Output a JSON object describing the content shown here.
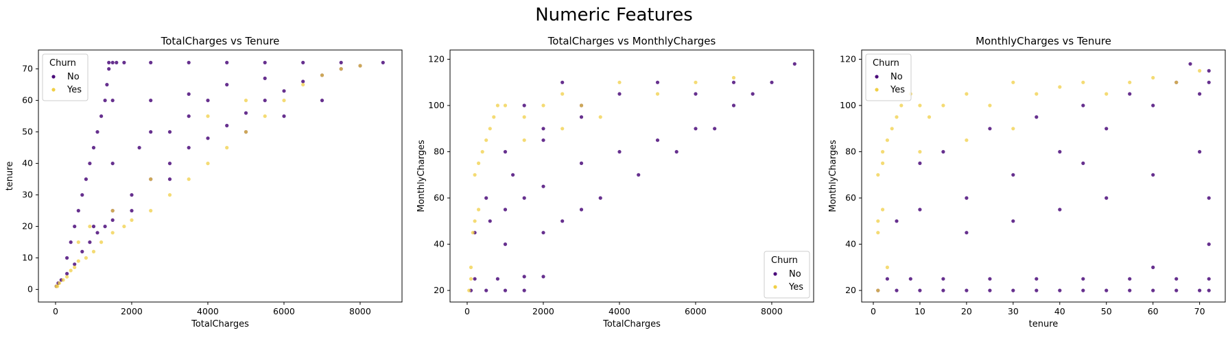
{
  "figure": {
    "suptitle": "Numeric Features"
  },
  "colors": {
    "no": "#4b0c7a",
    "yes": "#f0cf45"
  },
  "chart_data": [
    {
      "type": "scatter",
      "title": "TotalCharges vs Tenure",
      "xlabel": "TotalCharges",
      "ylabel": "tenure",
      "xlim": [
        -450,
        9100
      ],
      "ylim": [
        -4,
        76
      ],
      "xticks": [
        0,
        2000,
        4000,
        6000,
        8000
      ],
      "yticks": [
        0,
        10,
        20,
        30,
        40,
        50,
        60,
        70
      ],
      "grid": false,
      "legend": {
        "title": "Churn",
        "placement": "upper-left",
        "entries": [
          "No",
          "Yes"
        ]
      },
      "series": [
        {
          "name": "No",
          "color": "#4b0c7a",
          "points": [
            [
              20,
              1
            ],
            [
              70,
              2
            ],
            [
              150,
              3
            ],
            [
              300,
              5
            ],
            [
              500,
              8
            ],
            [
              700,
              12
            ],
            [
              900,
              15
            ],
            [
              1100,
              18
            ],
            [
              1300,
              20
            ],
            [
              1500,
              25
            ],
            [
              2000,
              30
            ],
            [
              2500,
              35
            ],
            [
              3000,
              40
            ],
            [
              3500,
              45
            ],
            [
              4000,
              48
            ],
            [
              4500,
              52
            ],
            [
              5000,
              56
            ],
            [
              5500,
              60
            ],
            [
              6000,
              63
            ],
            [
              6500,
              66
            ],
            [
              7000,
              68
            ],
            [
              7500,
              70
            ],
            [
              8000,
              71
            ],
            [
              8600,
              72
            ],
            [
              1400,
              72
            ],
            [
              1500,
              72
            ],
            [
              1600,
              72
            ],
            [
              1800,
              72
            ],
            [
              2500,
              72
            ],
            [
              3500,
              72
            ],
            [
              4500,
              72
            ],
            [
              5500,
              72
            ],
            [
              6500,
              72
            ],
            [
              7500,
              72
            ],
            [
              300,
              10
            ],
            [
              400,
              15
            ],
            [
              500,
              20
            ],
            [
              600,
              25
            ],
            [
              700,
              30
            ],
            [
              800,
              35
            ],
            [
              900,
              40
            ],
            [
              1000,
              45
            ],
            [
              1100,
              50
            ],
            [
              1200,
              55
            ],
            [
              1300,
              60
            ],
            [
              1350,
              65
            ],
            [
              1400,
              70
            ],
            [
              1500,
              60
            ],
            [
              2500,
              60
            ],
            [
              3500,
              62
            ],
            [
              4500,
              65
            ],
            [
              5500,
              67
            ],
            [
              2500,
              50
            ],
            [
              3500,
              55
            ],
            [
              4000,
              60
            ],
            [
              1500,
              40
            ],
            [
              2200,
              45
            ],
            [
              3000,
              50
            ],
            [
              1000,
              20
            ],
            [
              1500,
              22
            ],
            [
              2000,
              25
            ],
            [
              3000,
              35
            ],
            [
              5000,
              50
            ],
            [
              6000,
              55
            ],
            [
              7000,
              60
            ]
          ]
        },
        {
          "name": "Yes",
          "color": "#f0cf45",
          "points": [
            [
              20,
              1
            ],
            [
              50,
              1
            ],
            [
              100,
              2
            ],
            [
              200,
              3
            ],
            [
              300,
              4
            ],
            [
              400,
              6
            ],
            [
              500,
              7
            ],
            [
              600,
              9
            ],
            [
              800,
              10
            ],
            [
              1000,
              12
            ],
            [
              1200,
              15
            ],
            [
              1500,
              18
            ],
            [
              1800,
              20
            ],
            [
              2000,
              22
            ],
            [
              2500,
              25
            ],
            [
              3000,
              30
            ],
            [
              3500,
              35
            ],
            [
              4000,
              40
            ],
            [
              4500,
              45
            ],
            [
              5000,
              50
            ],
            [
              5500,
              55
            ],
            [
              6000,
              60
            ],
            [
              6500,
              65
            ],
            [
              7000,
              68
            ],
            [
              7500,
              70
            ],
            [
              8000,
              71
            ],
            [
              600,
              15
            ],
            [
              900,
              20
            ],
            [
              1500,
              25
            ],
            [
              2500,
              35
            ],
            [
              4000,
              55
            ],
            [
              5000,
              60
            ]
          ]
        }
      ]
    },
    {
      "type": "scatter",
      "title": "TotalCharges vs MonthlyCharges",
      "xlabel": "TotalCharges",
      "ylabel": "MonthlyCharges",
      "xlim": [
        -450,
        9100
      ],
      "ylim": [
        15,
        124
      ],
      "xticks": [
        0,
        2000,
        4000,
        6000,
        8000
      ],
      "yticks": [
        20,
        40,
        60,
        80,
        100,
        120
      ],
      "grid": false,
      "legend": {
        "title": "Churn",
        "placement": "lower-right",
        "entries": [
          "No",
          "Yes"
        ]
      },
      "series": [
        {
          "name": "No",
          "color": "#4b0c7a",
          "points": [
            [
              100,
              20
            ],
            [
              500,
              20
            ],
            [
              1000,
              20
            ],
            [
              1500,
              20
            ],
            [
              200,
              25
            ],
            [
              800,
              25
            ],
            [
              1500,
              26
            ],
            [
              2000,
              26
            ],
            [
              200,
              45
            ],
            [
              600,
              50
            ],
            [
              1000,
              55
            ],
            [
              1500,
              60
            ],
            [
              2000,
              65
            ],
            [
              3000,
              75
            ],
            [
              4000,
              80
            ],
            [
              5000,
              85
            ],
            [
              6000,
              90
            ],
            [
              7000,
              100
            ],
            [
              8000,
              110
            ],
            [
              8600,
              118
            ],
            [
              3000,
              100
            ],
            [
              4000,
              105
            ],
            [
              5000,
              110
            ],
            [
              2000,
              90
            ],
            [
              3000,
              95
            ],
            [
              1000,
              80
            ],
            [
              2000,
              85
            ],
            [
              500,
              60
            ],
            [
              1200,
              70
            ],
            [
              2500,
              50
            ],
            [
              3500,
              60
            ],
            [
              4500,
              70
            ],
            [
              5500,
              80
            ],
            [
              6500,
              90
            ],
            [
              7500,
              105
            ],
            [
              1000,
              40
            ],
            [
              2000,
              45
            ],
            [
              3000,
              55
            ],
            [
              1500,
              100
            ],
            [
              2500,
              110
            ],
            [
              6000,
              105
            ],
            [
              7000,
              110
            ]
          ]
        },
        {
          "name": "Yes",
          "color": "#f0cf45",
          "points": [
            [
              50,
              20
            ],
            [
              100,
              30
            ],
            [
              150,
              45
            ],
            [
              200,
              70
            ],
            [
              300,
              75
            ],
            [
              400,
              80
            ],
            [
              500,
              85
            ],
            [
              600,
              90
            ],
            [
              700,
              95
            ],
            [
              800,
              100
            ],
            [
              1000,
              100
            ],
            [
              1500,
              95
            ],
            [
              2000,
              100
            ],
            [
              2500,
              105
            ],
            [
              3000,
              100
            ],
            [
              4000,
              110
            ],
            [
              5000,
              105
            ],
            [
              6000,
              110
            ],
            [
              7000,
              112
            ],
            [
              200,
              50
            ],
            [
              300,
              55
            ],
            [
              100,
              25
            ],
            [
              1500,
              85
            ],
            [
              2500,
              90
            ],
            [
              3500,
              95
            ]
          ]
        }
      ]
    },
    {
      "type": "scatter",
      "title": "MonthlyCharges vs Tenure",
      "xlabel": "tenure",
      "ylabel": "MonthlyCharges",
      "xlim": [
        -2.5,
        75.5
      ],
      "ylim": [
        15,
        124
      ],
      "xticks": [
        0,
        10,
        20,
        30,
        40,
        50,
        60,
        70
      ],
      "yticks": [
        20,
        40,
        60,
        80,
        100,
        120
      ],
      "grid": false,
      "legend": {
        "title": "Churn",
        "placement": "upper-left",
        "entries": [
          "No",
          "Yes"
        ]
      },
      "series": [
        {
          "name": "No",
          "color": "#4b0c7a",
          "points": [
            [
              1,
              20
            ],
            [
              5,
              20
            ],
            [
              10,
              20
            ],
            [
              15,
              20
            ],
            [
              20,
              20
            ],
            [
              25,
              20
            ],
            [
              30,
              20
            ],
            [
              35,
              20
            ],
            [
              40,
              20
            ],
            [
              45,
              20
            ],
            [
              50,
              20
            ],
            [
              55,
              20
            ],
            [
              60,
              20
            ],
            [
              65,
              20
            ],
            [
              70,
              20
            ],
            [
              72,
              20
            ],
            [
              3,
              25
            ],
            [
              8,
              25
            ],
            [
              15,
              25
            ],
            [
              25,
              25
            ],
            [
              35,
              25
            ],
            [
              45,
              25
            ],
            [
              55,
              25
            ],
            [
              65,
              25
            ],
            [
              72,
              25
            ],
            [
              5,
              50
            ],
            [
              10,
              55
            ],
            [
              20,
              60
            ],
            [
              30,
              70
            ],
            [
              40,
              80
            ],
            [
              50,
              90
            ],
            [
              60,
              100
            ],
            [
              70,
              105
            ],
            [
              72,
              110
            ],
            [
              72,
              115
            ],
            [
              68,
              118
            ],
            [
              15,
              80
            ],
            [
              25,
              90
            ],
            [
              35,
              95
            ],
            [
              45,
              100
            ],
            [
              55,
              105
            ],
            [
              65,
              110
            ],
            [
              20,
              45
            ],
            [
              30,
              50
            ],
            [
              40,
              55
            ],
            [
              50,
              60
            ],
            [
              60,
              70
            ],
            [
              70,
              80
            ],
            [
              10,
              75
            ],
            [
              45,
              75
            ],
            [
              72,
              60
            ],
            [
              72,
              40
            ],
            [
              60,
              30
            ]
          ]
        },
        {
          "name": "Yes",
          "color": "#f0cf45",
          "points": [
            [
              1,
              20
            ],
            [
              1,
              45
            ],
            [
              1,
              70
            ],
            [
              2,
              75
            ],
            [
              2,
              80
            ],
            [
              3,
              85
            ],
            [
              4,
              90
            ],
            [
              5,
              95
            ],
            [
              6,
              100
            ],
            [
              8,
              105
            ],
            [
              10,
              100
            ],
            [
              12,
              95
            ],
            [
              15,
              100
            ],
            [
              20,
              105
            ],
            [
              25,
              100
            ],
            [
              30,
              110
            ],
            [
              35,
              105
            ],
            [
              40,
              108
            ],
            [
              45,
              110
            ],
            [
              50,
              105
            ],
            [
              55,
              110
            ],
            [
              60,
              112
            ],
            [
              65,
              110
            ],
            [
              70,
              115
            ],
            [
              1,
              50
            ],
            [
              2,
              55
            ],
            [
              3,
              30
            ],
            [
              10,
              80
            ],
            [
              20,
              85
            ],
            [
              30,
              90
            ]
          ]
        }
      ]
    }
  ]
}
